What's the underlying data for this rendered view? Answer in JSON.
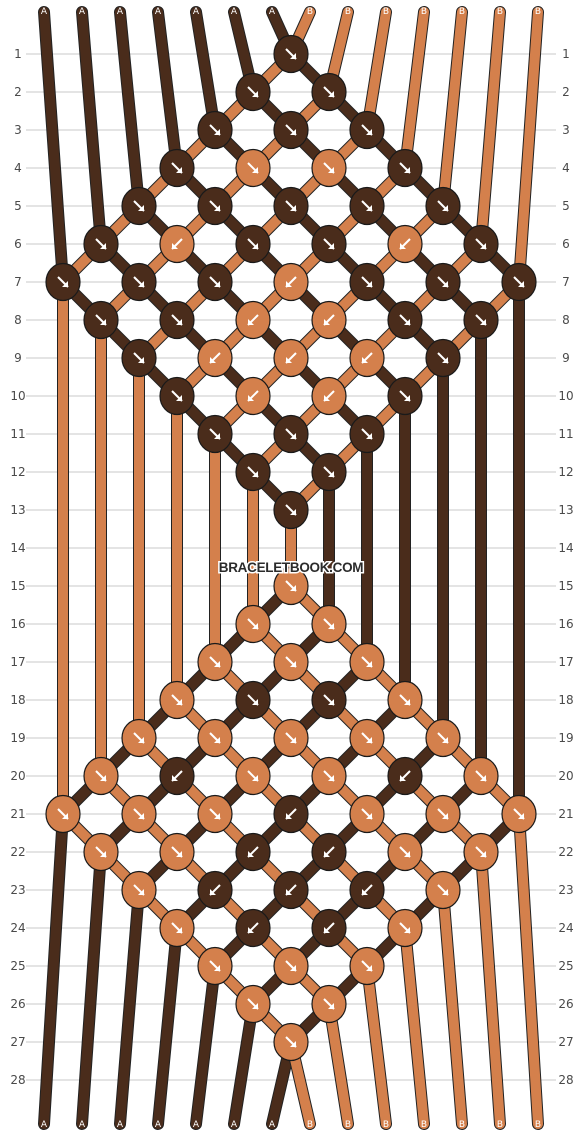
{
  "watermark": "BRACELETBOOK.COM",
  "colors": {
    "A": "#4a2c1b",
    "B": "#d4804c",
    "grid": "#c8c8c8",
    "knot_outline": "#1a1a1a",
    "arrow": "#ffffff"
  },
  "strings": [
    "A",
    "A",
    "A",
    "A",
    "A",
    "A",
    "A",
    "B",
    "B",
    "B",
    "B",
    "B",
    "B",
    "B"
  ],
  "row_numbers": [
    "1",
    "2",
    "3",
    "4",
    "5",
    "6",
    "7",
    "8",
    "9",
    "10",
    "11",
    "12",
    "13",
    "14",
    "15",
    "16",
    "17",
    "18",
    "19",
    "20",
    "21",
    "22",
    "23",
    "24",
    "25",
    "26",
    "27",
    "28"
  ],
  "knots": [
    {
      "r": 1,
      "c": 6,
      "color": "A",
      "dir": "se"
    },
    {
      "r": 2,
      "c": 5,
      "color": "A",
      "dir": "se"
    },
    {
      "r": 2,
      "c": 7,
      "color": "A",
      "dir": "se"
    },
    {
      "r": 3,
      "c": 4,
      "color": "A",
      "dir": "se"
    },
    {
      "r": 3,
      "c": 6,
      "color": "A",
      "dir": "se"
    },
    {
      "r": 3,
      "c": 8,
      "color": "A",
      "dir": "se"
    },
    {
      "r": 4,
      "c": 3,
      "color": "A",
      "dir": "se"
    },
    {
      "r": 4,
      "c": 5,
      "color": "B",
      "dir": "se"
    },
    {
      "r": 4,
      "c": 7,
      "color": "B",
      "dir": "se"
    },
    {
      "r": 4,
      "c": 9,
      "color": "A",
      "dir": "se"
    },
    {
      "r": 5,
      "c": 2,
      "color": "A",
      "dir": "se"
    },
    {
      "r": 5,
      "c": 4,
      "color": "A",
      "dir": "se"
    },
    {
      "r": 5,
      "c": 6,
      "color": "A",
      "dir": "se"
    },
    {
      "r": 5,
      "c": 8,
      "color": "A",
      "dir": "se"
    },
    {
      "r": 5,
      "c": 10,
      "color": "A",
      "dir": "se"
    },
    {
      "r": 6,
      "c": 1,
      "color": "A",
      "dir": "se"
    },
    {
      "r": 6,
      "c": 3,
      "color": "B",
      "dir": "sw"
    },
    {
      "r": 6,
      "c": 5,
      "color": "A",
      "dir": "se"
    },
    {
      "r": 6,
      "c": 7,
      "color": "A",
      "dir": "se"
    },
    {
      "r": 6,
      "c": 9,
      "color": "B",
      "dir": "sw"
    },
    {
      "r": 6,
      "c": 11,
      "color": "A",
      "dir": "se"
    },
    {
      "r": 7,
      "c": 0,
      "color": "A",
      "dir": "se"
    },
    {
      "r": 7,
      "c": 2,
      "color": "A",
      "dir": "se"
    },
    {
      "r": 7,
      "c": 4,
      "color": "A",
      "dir": "se"
    },
    {
      "r": 7,
      "c": 6,
      "color": "B",
      "dir": "sw"
    },
    {
      "r": 7,
      "c": 8,
      "color": "A",
      "dir": "se"
    },
    {
      "r": 7,
      "c": 10,
      "color": "A",
      "dir": "se"
    },
    {
      "r": 7,
      "c": 12,
      "color": "A",
      "dir": "se"
    },
    {
      "r": 8,
      "c": 1,
      "color": "A",
      "dir": "se"
    },
    {
      "r": 8,
      "c": 3,
      "color": "A",
      "dir": "se"
    },
    {
      "r": 8,
      "c": 5,
      "color": "B",
      "dir": "sw"
    },
    {
      "r": 8,
      "c": 7,
      "color": "B",
      "dir": "sw"
    },
    {
      "r": 8,
      "c": 9,
      "color": "A",
      "dir": "se"
    },
    {
      "r": 8,
      "c": 11,
      "color": "A",
      "dir": "se"
    },
    {
      "r": 9,
      "c": 2,
      "color": "A",
      "dir": "se"
    },
    {
      "r": 9,
      "c": 4,
      "color": "B",
      "dir": "sw"
    },
    {
      "r": 9,
      "c": 6,
      "color": "B",
      "dir": "sw"
    },
    {
      "r": 9,
      "c": 8,
      "color": "B",
      "dir": "sw"
    },
    {
      "r": 9,
      "c": 10,
      "color": "A",
      "dir": "se"
    },
    {
      "r": 10,
      "c": 3,
      "color": "A",
      "dir": "se"
    },
    {
      "r": 10,
      "c": 5,
      "color": "B",
      "dir": "sw"
    },
    {
      "r": 10,
      "c": 7,
      "color": "B",
      "dir": "sw"
    },
    {
      "r": 10,
      "c": 9,
      "color": "A",
      "dir": "se"
    },
    {
      "r": 11,
      "c": 4,
      "color": "A",
      "dir": "se"
    },
    {
      "r": 11,
      "c": 6,
      "color": "A",
      "dir": "se"
    },
    {
      "r": 11,
      "c": 8,
      "color": "A",
      "dir": "se"
    },
    {
      "r": 12,
      "c": 5,
      "color": "A",
      "dir": "se"
    },
    {
      "r": 12,
      "c": 7,
      "color": "A",
      "dir": "se"
    },
    {
      "r": 13,
      "c": 6,
      "color": "A",
      "dir": "se"
    },
    {
      "r": 15,
      "c": 6,
      "color": "B",
      "dir": "se"
    },
    {
      "r": 16,
      "c": 5,
      "color": "B",
      "dir": "se"
    },
    {
      "r": 16,
      "c": 7,
      "color": "B",
      "dir": "se"
    },
    {
      "r": 17,
      "c": 4,
      "color": "B",
      "dir": "se"
    },
    {
      "r": 17,
      "c": 6,
      "color": "B",
      "dir": "se"
    },
    {
      "r": 17,
      "c": 8,
      "color": "B",
      "dir": "se"
    },
    {
      "r": 18,
      "c": 3,
      "color": "B",
      "dir": "se"
    },
    {
      "r": 18,
      "c": 5,
      "color": "A",
      "dir": "se"
    },
    {
      "r": 18,
      "c": 7,
      "color": "A",
      "dir": "se"
    },
    {
      "r": 18,
      "c": 9,
      "color": "B",
      "dir": "se"
    },
    {
      "r": 19,
      "c": 2,
      "color": "B",
      "dir": "se"
    },
    {
      "r": 19,
      "c": 4,
      "color": "B",
      "dir": "se"
    },
    {
      "r": 19,
      "c": 6,
      "color": "B",
      "dir": "se"
    },
    {
      "r": 19,
      "c": 8,
      "color": "B",
      "dir": "se"
    },
    {
      "r": 19,
      "c": 10,
      "color": "B",
      "dir": "se"
    },
    {
      "r": 20,
      "c": 1,
      "color": "B",
      "dir": "se"
    },
    {
      "r": 20,
      "c": 3,
      "color": "A",
      "dir": "sw"
    },
    {
      "r": 20,
      "c": 5,
      "color": "B",
      "dir": "se"
    },
    {
      "r": 20,
      "c": 7,
      "color": "B",
      "dir": "se"
    },
    {
      "r": 20,
      "c": 9,
      "color": "A",
      "dir": "sw"
    },
    {
      "r": 20,
      "c": 11,
      "color": "B",
      "dir": "se"
    },
    {
      "r": 21,
      "c": 0,
      "color": "B",
      "dir": "se"
    },
    {
      "r": 21,
      "c": 2,
      "color": "B",
      "dir": "se"
    },
    {
      "r": 21,
      "c": 4,
      "color": "B",
      "dir": "se"
    },
    {
      "r": 21,
      "c": 6,
      "color": "A",
      "dir": "sw"
    },
    {
      "r": 21,
      "c": 8,
      "color": "B",
      "dir": "se"
    },
    {
      "r": 21,
      "c": 10,
      "color": "B",
      "dir": "se"
    },
    {
      "r": 21,
      "c": 12,
      "color": "B",
      "dir": "se"
    },
    {
      "r": 22,
      "c": 1,
      "color": "B",
      "dir": "se"
    },
    {
      "r": 22,
      "c": 3,
      "color": "B",
      "dir": "se"
    },
    {
      "r": 22,
      "c": 5,
      "color": "A",
      "dir": "sw"
    },
    {
      "r": 22,
      "c": 7,
      "color": "A",
      "dir": "sw"
    },
    {
      "r": 22,
      "c": 9,
      "color": "B",
      "dir": "se"
    },
    {
      "r": 22,
      "c": 11,
      "color": "B",
      "dir": "se"
    },
    {
      "r": 23,
      "c": 2,
      "color": "B",
      "dir": "se"
    },
    {
      "r": 23,
      "c": 4,
      "color": "A",
      "dir": "sw"
    },
    {
      "r": 23,
      "c": 6,
      "color": "A",
      "dir": "sw"
    },
    {
      "r": 23,
      "c": 8,
      "color": "A",
      "dir": "sw"
    },
    {
      "r": 23,
      "c": 10,
      "color": "B",
      "dir": "se"
    },
    {
      "r": 24,
      "c": 3,
      "color": "B",
      "dir": "se"
    },
    {
      "r": 24,
      "c": 5,
      "color": "A",
      "dir": "sw"
    },
    {
      "r": 24,
      "c": 7,
      "color": "A",
      "dir": "sw"
    },
    {
      "r": 24,
      "c": 9,
      "color": "B",
      "dir": "se"
    },
    {
      "r": 25,
      "c": 4,
      "color": "B",
      "dir": "se"
    },
    {
      "r": 25,
      "c": 6,
      "color": "B",
      "dir": "se"
    },
    {
      "r": 25,
      "c": 8,
      "color": "B",
      "dir": "se"
    },
    {
      "r": 26,
      "c": 5,
      "color": "B",
      "dir": "se"
    },
    {
      "r": 26,
      "c": 7,
      "color": "B",
      "dir": "se"
    },
    {
      "r": 27,
      "c": 6,
      "color": "B",
      "dir": "se"
    }
  ]
}
